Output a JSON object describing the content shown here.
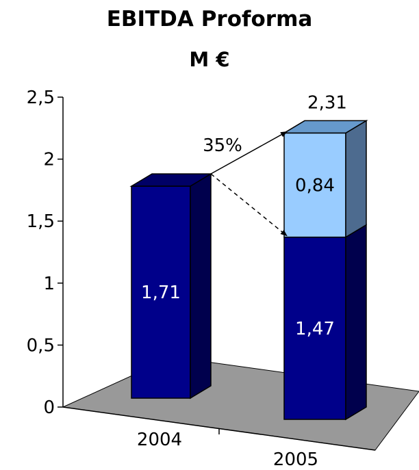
{
  "chart_data": {
    "type": "bar",
    "title": "EBITDA Proforma",
    "subtitle": "M €",
    "categories": [
      "2004",
      "2005"
    ],
    "series": [
      {
        "values": [
          1.71,
          1.47
        ],
        "color": "#00008a"
      },
      {
        "values": [
          0,
          0.84
        ],
        "color": "#99ccff"
      }
    ],
    "data_labels": {
      "2004": [
        "1,71"
      ],
      "2005": [
        "1,47",
        "0,84"
      ]
    },
    "totals": [
      "",
      "2,31"
    ],
    "ylim": [
      0,
      2.5
    ],
    "yticks": [
      0,
      0.5,
      1,
      1.5,
      2,
      2.5
    ],
    "ytick_labels": [
      "0",
      "0,5",
      "1",
      "1,5",
      "2",
      "2,5"
    ],
    "annotation": {
      "text": "35%"
    },
    "colors": {
      "floor": "#999999",
      "base_dark": "#00004d",
      "base_top": "#000066",
      "top_side": "#4d6b8f",
      "top_cap": "#6699cc"
    },
    "grid": false,
    "legend": "none",
    "view": "3d"
  }
}
